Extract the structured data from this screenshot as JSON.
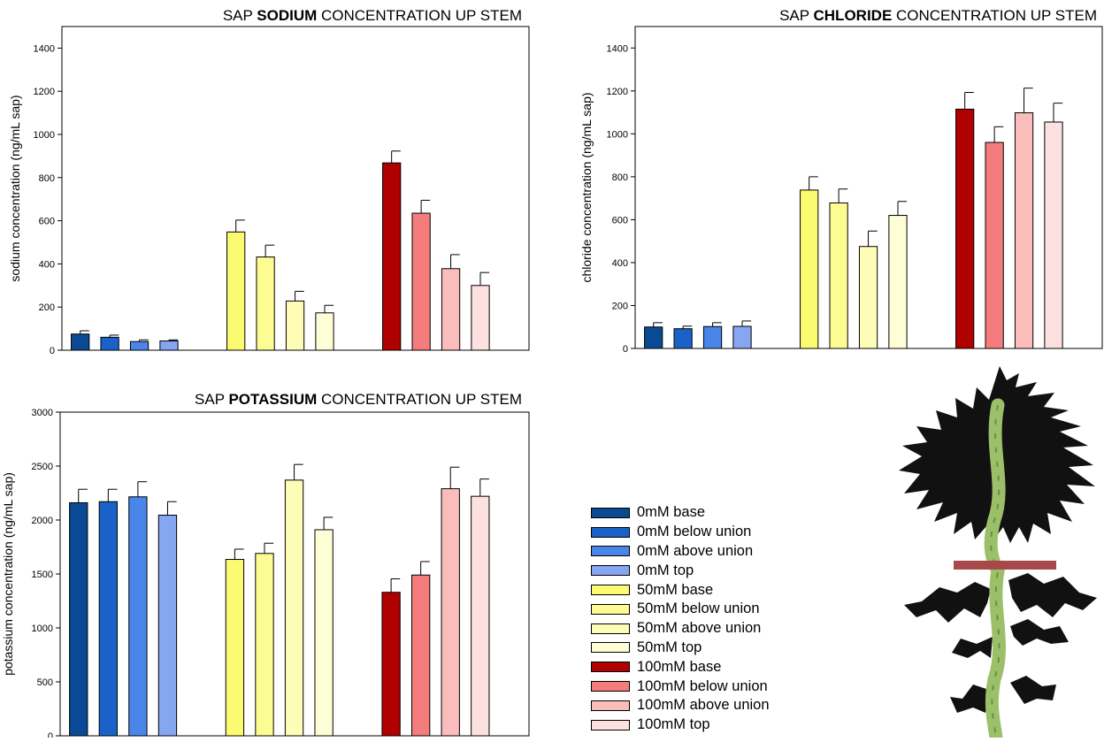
{
  "series_styles": [
    {
      "name": "0mM base",
      "color": "#0a4a94"
    },
    {
      "name": "0mM below union",
      "color": "#1a62c8"
    },
    {
      "name": "0mM above union",
      "color": "#4a86ea"
    },
    {
      "name": "0mM top",
      "color": "#86a6f2"
    },
    {
      "name": "50mM base",
      "color": "#fbfb72"
    },
    {
      "name": "50mM below union",
      "color": "#fcfc92"
    },
    {
      "name": "50mM above union",
      "color": "#fdfdb8"
    },
    {
      "name": "50mM top",
      "color": "#fefed6"
    },
    {
      "name": "100mM base",
      "color": "#b00000"
    },
    {
      "name": "100mM below union",
      "color": "#f47c7c"
    },
    {
      "name": "100mM above union",
      "color": "#fbbcbc"
    },
    {
      "name": "100mM top",
      "color": "#fde0e0"
    }
  ],
  "chart_data": [
    {
      "type": "bar",
      "title_prefix": "SAP ",
      "title_bold": "SODIUM",
      "title_suffix": " CONCENTRATION UP STEM",
      "ylabel": "sodium concentration (ng/mL sap)",
      "ylim": [
        0,
        1500
      ],
      "yticks": [
        0,
        200,
        400,
        600,
        800,
        1000,
        1200,
        1400
      ],
      "values": [
        [
          75,
          60,
          40,
          43
        ],
        [
          548,
          432,
          228,
          173
        ],
        [
          868,
          635,
          378,
          300
        ]
      ],
      "errors": [
        [
          15,
          10,
          8,
          5
        ],
        [
          55,
          55,
          45,
          35
        ],
        [
          55,
          60,
          65,
          60
        ]
      ]
    },
    {
      "type": "bar",
      "title_prefix": "SAP ",
      "title_bold": "CHLORIDE",
      "title_suffix": " CONCENTRATION UP STEM",
      "ylabel": "chloride concentration (ng/mL sap)",
      "ylim": [
        0,
        1500
      ],
      "yticks": [
        0,
        200,
        400,
        600,
        800,
        1000,
        1200,
        1400
      ],
      "values": [
        [
          100,
          92,
          102,
          103
        ],
        [
          738,
          678,
          475,
          620
        ],
        [
          1115,
          960,
          1098,
          1055
        ]
      ],
      "errors": [
        [
          20,
          12,
          18,
          25
        ],
        [
          62,
          65,
          72,
          65
        ],
        [
          78,
          73,
          115,
          88
        ]
      ]
    },
    {
      "type": "bar",
      "title_prefix": "SAP ",
      "title_bold": "POTASSIUM",
      "title_suffix": " CONCENTRATION UP STEM",
      "ylabel": "potassium concentration (ng/mL sap)",
      "ylim": [
        0,
        3000
      ],
      "yticks": [
        0,
        500,
        1000,
        1500,
        2000,
        2500,
        3000
      ],
      "values": [
        [
          2160,
          2170,
          2215,
          2045
        ],
        [
          1635,
          1690,
          2370,
          1910
        ],
        [
          1330,
          1490,
          2290,
          2220
        ]
      ],
      "errors": [
        [
          125,
          115,
          140,
          125
        ],
        [
          95,
          95,
          145,
          115
        ],
        [
          125,
          125,
          200,
          160
        ]
      ]
    }
  ]
}
